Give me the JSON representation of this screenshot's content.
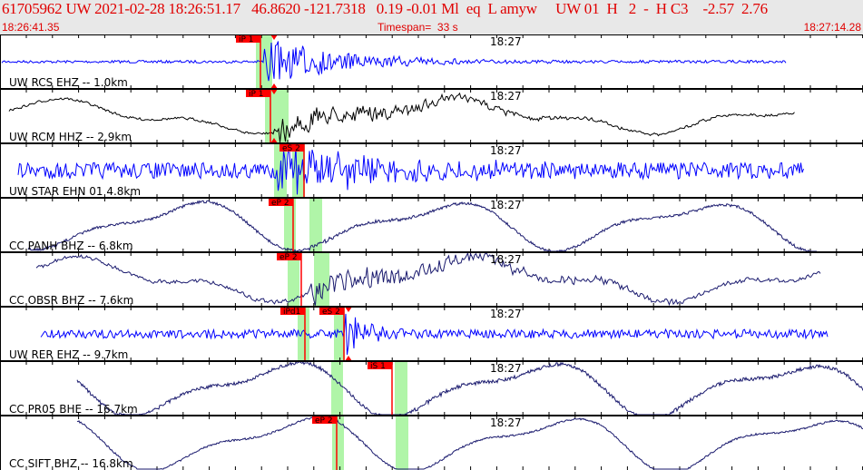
{
  "header": {
    "title": "61705962 UW 2021-02-28 18:26:51.17   46.8620 -121.7318   0.19 -0.01 Ml  eq  L amyw     UW 01  H   2  -  H C3    -2.57  2.76",
    "start_time": "18:26:41.35",
    "timespan": "Timespan=  33 s",
    "end_time": "18:27:14.28"
  },
  "colors": {
    "header_text": "#e00000",
    "pick_box": "#ff0000",
    "window": "#b0f5a8"
  },
  "traces": [
    {
      "label": "UW RCS EHZ -- 1.0km",
      "time_label": "18:27",
      "color": "#0000ff",
      "picks": [
        "iP 1"
      ]
    },
    {
      "label": "UW RCM HHZ -- 2.9km",
      "time_label": "18:27",
      "color": "#000000",
      "picks": [
        "iP 1"
      ]
    },
    {
      "label": "UW STAR EHN 01  4.8km",
      "time_label": "18:27",
      "color": "#0000ff",
      "picks": [
        "eS 2"
      ]
    },
    {
      "label": "CC PANH BHZ -- 6.8km",
      "time_label": "18:27",
      "color": "#1a1a6e",
      "picks": [
        "eP 2"
      ]
    },
    {
      "label": "CC OBSR BHZ -- 7.6km",
      "time_label": "18:27",
      "color": "#1a1a6e",
      "picks": [
        "eP 2"
      ]
    },
    {
      "label": "UW RER EHZ -- 9.7km",
      "time_label": "18:27",
      "color": "#0000ff",
      "picks": [
        "iPd1",
        "eS 2"
      ]
    },
    {
      "label": "CC PR05 BHE -- 16.7km",
      "time_label": "18:27",
      "color": "#1a1a6e",
      "picks": [
        "iS 1"
      ]
    },
    {
      "label": "CC SIFT BHZ -- 16.8km",
      "time_label": "18:27",
      "color": "#1a1a6e",
      "picks": [
        "eP 2"
      ]
    }
  ]
}
